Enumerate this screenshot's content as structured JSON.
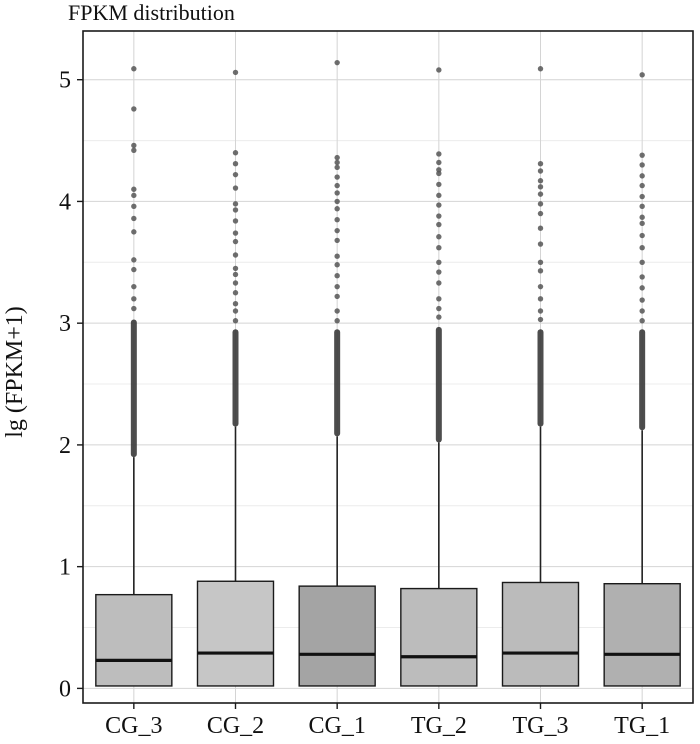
{
  "chart_data": {
    "type": "box",
    "title": "FPKM distribution",
    "xlabel": "",
    "ylabel": "lg (FPKM+1)",
    "ylim": [
      -0.12,
      5.4
    ],
    "yticks": [
      "0",
      "1",
      "2",
      "3",
      "4",
      "5"
    ],
    "grid": true,
    "legend": "none",
    "categories": [
      "CG_3",
      "CG_2",
      "CG_1",
      "TG_2",
      "TG_3",
      "TG_1"
    ],
    "boxes": [
      {
        "label": "CG_3",
        "whisker_low": 0.02,
        "q1": 0.02,
        "median": 0.23,
        "q3": 0.77,
        "whisker_high": 1.9,
        "fill": "#bdbdbd",
        "outliers_dense": [
          1.9,
          3.03
        ],
        "outliers": [
          3.12,
          3.2,
          3.3,
          3.44,
          3.52,
          3.75,
          3.86,
          3.96,
          4.05,
          4.1,
          4.42,
          4.46,
          4.76,
          5.09
        ]
      },
      {
        "label": "CG_2",
        "whisker_low": 0.02,
        "q1": 0.02,
        "median": 0.29,
        "q3": 0.88,
        "whisker_high": 2.15,
        "fill": "#c6c6c6",
        "outliers_dense": [
          2.15,
          2.95
        ],
        "outliers": [
          3.02,
          3.1,
          3.16,
          3.25,
          3.33,
          3.4,
          3.45,
          3.56,
          3.67,
          3.74,
          3.84,
          3.93,
          3.98,
          4.11,
          4.22,
          4.31,
          4.4,
          5.06
        ]
      },
      {
        "label": "CG_1",
        "whisker_low": 0.02,
        "q1": 0.02,
        "median": 0.28,
        "q3": 0.84,
        "whisker_high": 2.07,
        "fill": "#a4a4a4",
        "outliers_dense": [
          2.07,
          2.95
        ],
        "outliers": [
          3.02,
          3.1,
          3.22,
          3.3,
          3.39,
          3.48,
          3.55,
          3.68,
          3.76,
          3.85,
          3.94,
          4.0,
          4.07,
          4.13,
          4.2,
          4.28,
          4.32,
          4.36,
          5.14
        ]
      },
      {
        "label": "TG_2",
        "whisker_low": 0.02,
        "q1": 0.02,
        "median": 0.26,
        "q3": 0.82,
        "whisker_high": 2.02,
        "fill": "#bcbcbc",
        "outliers_dense": [
          2.02,
          2.97
        ],
        "outliers": [
          3.05,
          3.12,
          3.2,
          3.33,
          3.42,
          3.5,
          3.62,
          3.71,
          3.81,
          3.88,
          3.97,
          4.05,
          4.14,
          4.23,
          4.26,
          4.32,
          4.39,
          5.08
        ]
      },
      {
        "label": "TG_3",
        "whisker_low": 0.02,
        "q1": 0.02,
        "median": 0.29,
        "q3": 0.87,
        "whisker_high": 2.15,
        "fill": "#bbbbbb",
        "outliers_dense": [
          2.15,
          2.95
        ],
        "outliers": [
          3.03,
          3.1,
          3.2,
          3.3,
          3.43,
          3.5,
          3.65,
          3.78,
          3.9,
          3.98,
          4.06,
          4.12,
          4.17,
          4.25,
          4.31,
          5.09
        ]
      },
      {
        "label": "TG_1",
        "whisker_low": 0.02,
        "q1": 0.02,
        "median": 0.28,
        "q3": 0.86,
        "whisker_high": 2.12,
        "fill": "#b0b0b0",
        "outliers_dense": [
          2.12,
          2.95
        ],
        "outliers": [
          3.02,
          3.1,
          3.19,
          3.29,
          3.38,
          3.5,
          3.62,
          3.72,
          3.82,
          3.87,
          3.96,
          4.04,
          4.13,
          4.21,
          4.3,
          4.38,
          5.04
        ]
      }
    ]
  }
}
